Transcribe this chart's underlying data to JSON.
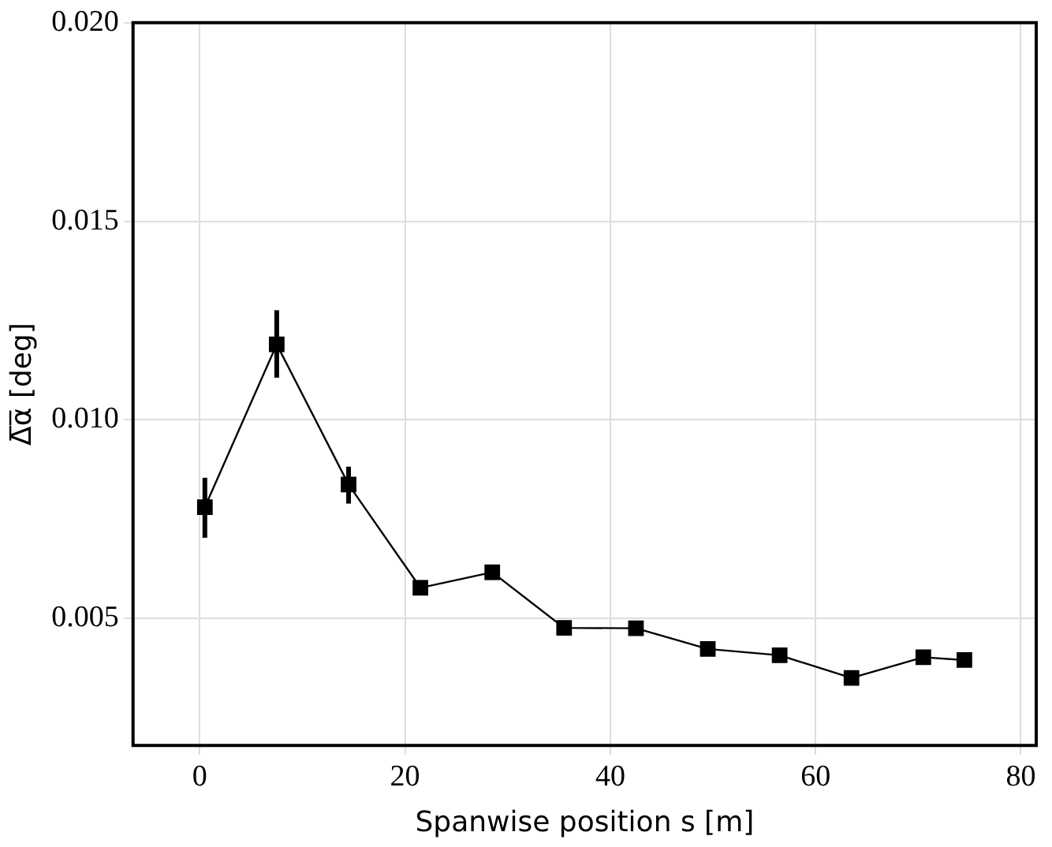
{
  "chart_data": {
    "type": "line",
    "xlabel": "Spanwise position s [m]",
    "ylabel": "Δ̅α̅ [deg]",
    "x": [
      0.5,
      7.5,
      14.5,
      21.5,
      28.5,
      35.5,
      42.5,
      49.5,
      56.5,
      63.5,
      70.5,
      74.5
    ],
    "series": [
      {
        "color": "#000000",
        "values": [
          0.0078,
          0.0119,
          0.00837,
          0.00577,
          0.00616,
          0.00476,
          0.00475,
          0.00423,
          0.00407,
          0.0035,
          0.00402,
          0.00395
        ],
        "errors": [
          [
            0.00703,
            0.00854
          ],
          [
            0.01106,
            0.01276
          ],
          [
            0.00789,
            0.00882
          ],
          null,
          null,
          null,
          null,
          null,
          null,
          null,
          null,
          null
        ]
      }
    ],
    "xlim": [
      -6.5,
      81.5
    ],
    "ylim": [
      0.0018,
      0.02
    ],
    "xticks": [
      0,
      20,
      40,
      60,
      80
    ],
    "yticks": [
      0.005,
      {
        "value": 0.01,
        "label": "0.010"
      },
      0.015,
      {
        "value": 0.02,
        "label": "0.020"
      }
    ],
    "grid": true,
    "legend": false,
    "marker": "square",
    "line_style": "solid"
  }
}
